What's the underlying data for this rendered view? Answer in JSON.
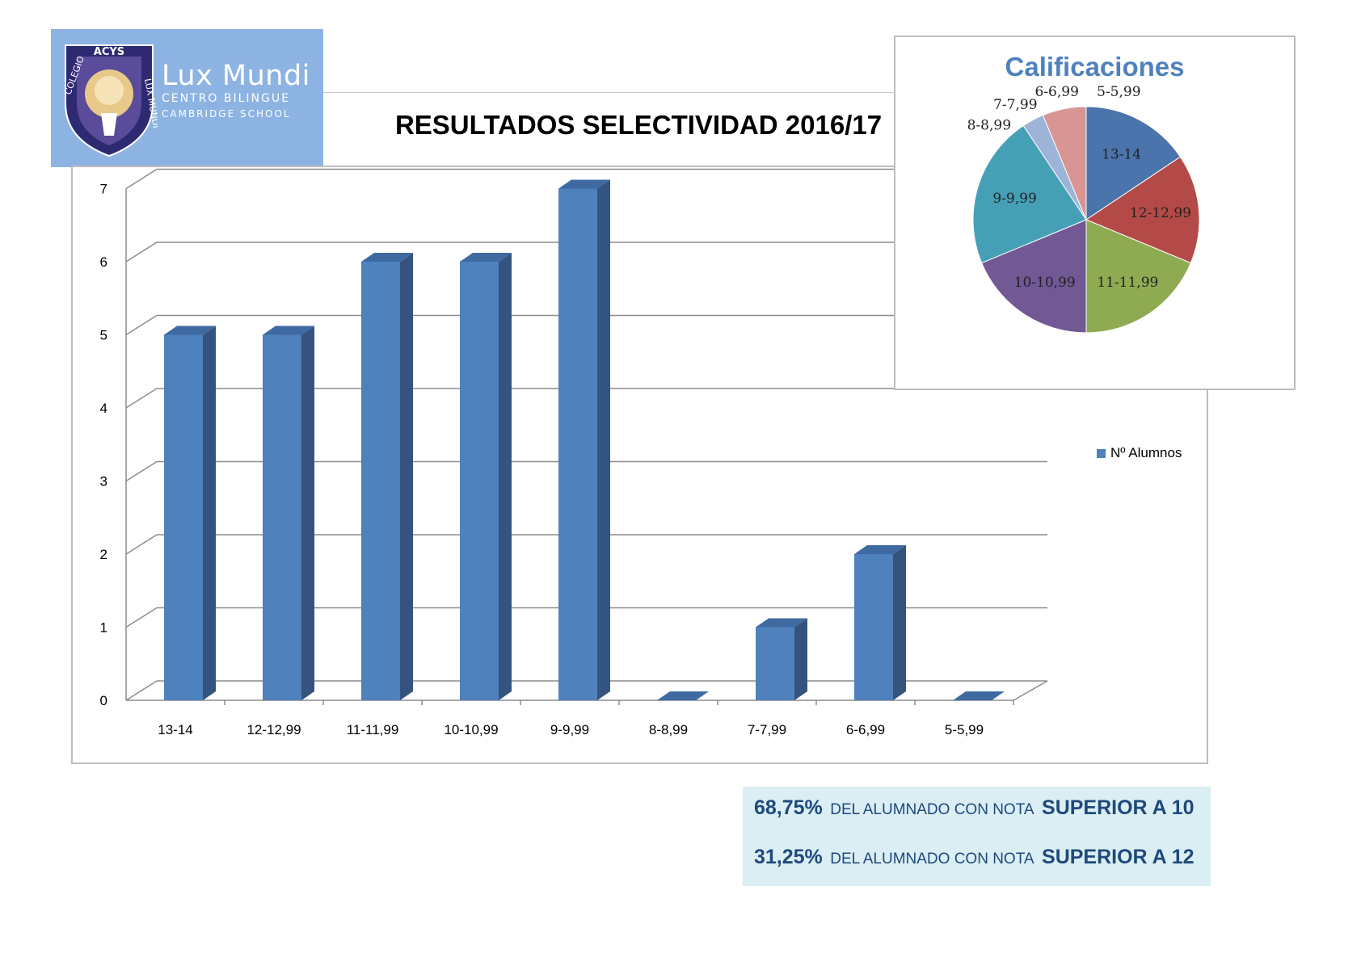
{
  "logo": {
    "arc_text": "ACYS",
    "left_text": "COLEGIO",
    "right_text": "LUX MUNDI",
    "brand": "Lux Mundi",
    "line1": "CENTRO BILINGUE",
    "line2": "CAMBRIDGE SCHOOL"
  },
  "page_title": "RESULTADOS SELECTIVIDAD 2016/17",
  "colors": {
    "bar_front": "#4f81bd",
    "bar_side": "#34547f",
    "bar_top": "#3e6aa1",
    "logo_bg": "#8db3e2",
    "stats_bg": "#daeef3",
    "stats_text": "#1f497d",
    "pie": [
      "#4a74ab",
      "#b44a47",
      "#8fab52",
      "#725895",
      "#45a0b6",
      "#9db4d8",
      "#d99594"
    ]
  },
  "chart_data": [
    {
      "type": "bar",
      "categories": [
        "13-14",
        "12-12,99",
        "11-11,99",
        "10-10,99",
        "9-9,99",
        "8-8,99",
        "7-7,99",
        "6-6,99",
        "5-5,99"
      ],
      "series": [
        {
          "name": "Nº Alumnos",
          "values": [
            5,
            5,
            6,
            6,
            7,
            0,
            1,
            2,
            0
          ]
        }
      ],
      "y_ticks": [
        "0",
        "1",
        "2",
        "3",
        "4",
        "5",
        "6",
        "7"
      ],
      "ylim": [
        0,
        7
      ],
      "grid": true,
      "style": "3d",
      "legend": "right"
    },
    {
      "type": "pie",
      "title": "Calificaciones",
      "labels": [
        "13-14",
        "12-12,99",
        "11-11,99",
        "10-10,99",
        "9-9,99",
        "8-8,99",
        "7-7,99",
        "6-6,99",
        "5-5,99"
      ],
      "values": [
        5,
        5,
        6,
        6,
        7,
        0,
        1,
        2,
        0
      ]
    }
  ],
  "stats": [
    {
      "pct": "68,75%",
      "text": "DEL ALUMNADO CON NOTA",
      "bold": "SUPERIOR A 10"
    },
    {
      "pct": "31,25%",
      "text": "DEL ALUMNADO CON NOTA",
      "bold": "SUPERIOR A 12"
    }
  ]
}
